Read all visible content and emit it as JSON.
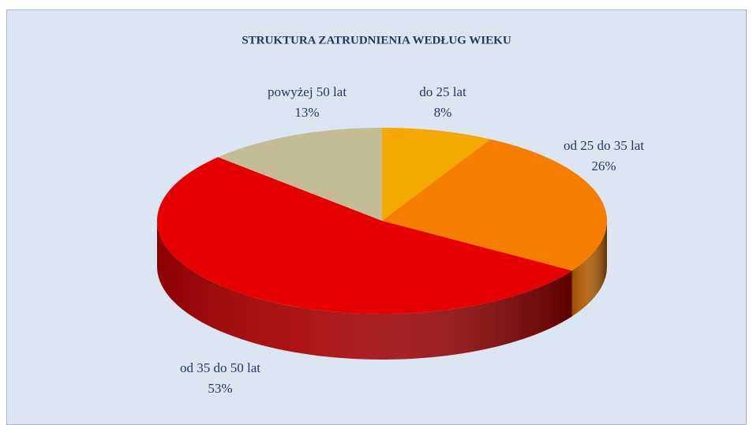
{
  "chart_data": {
    "type": "pie",
    "title": "STRUKTURA ZATRUDNIENIA WEDŁUG WIEKU",
    "categories": [
      "do 25 lat",
      "od 25 do 35 lat",
      "od 35 do 50 lat",
      "powyżej 50 lat"
    ],
    "values": [
      8,
      26,
      53,
      13
    ],
    "value_labels": [
      "8%",
      "26%",
      "53%",
      "13%"
    ],
    "colors": [
      "#f5a900",
      "#f57d00",
      "#e60000",
      "#c3bc95"
    ]
  }
}
